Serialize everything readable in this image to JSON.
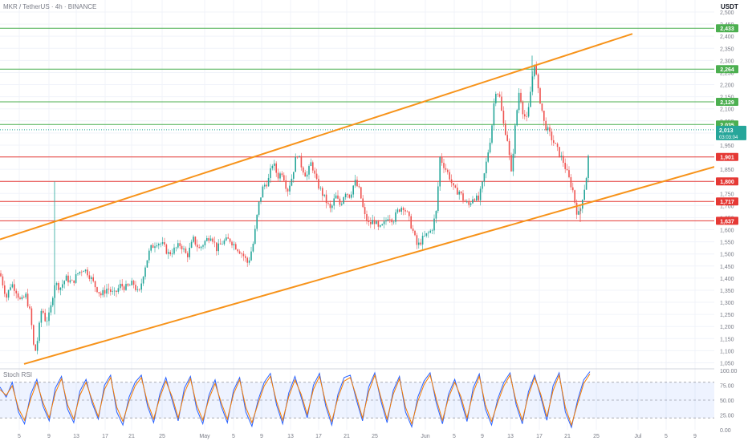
{
  "header": {
    "symbol_text": "MKR / TetherUS · 4h · BINANCE",
    "currency_label": "USDT"
  },
  "chart_data": [
    {
      "type": "candlestick",
      "title": "MKR / TetherUS · 4h · BINANCE",
      "y_unit": "USDT",
      "ylim": [
        1025,
        2510
      ],
      "y_ticks": [
        "1,050",
        "1,100",
        "1,150",
        "1,200",
        "1,250",
        "1,300",
        "1,350",
        "1,400",
        "1,450",
        "1,500",
        "1,550",
        "1,600",
        "1,650",
        "1,700",
        "1,750",
        "1,800",
        "1,850",
        "1,900",
        "1,950",
        "2,000",
        "2,050",
        "2,100",
        "2,150",
        "2,200",
        "2,250",
        "2,300",
        "2,350",
        "2,400",
        "2,450",
        "2,500"
      ],
      "x_tick_labels": [
        "5",
        "9",
        "13",
        "17",
        "21",
        "25",
        "May",
        "5",
        "9",
        "13",
        "17",
        "21",
        "25",
        "Jun",
        "5",
        "9",
        "13",
        "17",
        "21",
        "25",
        "Jul",
        "5",
        "9"
      ],
      "x_tick_positions": [
        24,
        61,
        95,
        131,
        164,
        202,
        255,
        291,
        326,
        362,
        397,
        432,
        467,
        530,
        566,
        601,
        636,
        672,
        707,
        743,
        795,
        830,
        866
      ],
      "price_path": [
        [
          0,
          1420
        ],
        [
          8,
          1320
        ],
        [
          14,
          1380
        ],
        [
          20,
          1350
        ],
        [
          26,
          1300
        ],
        [
          32,
          1330
        ],
        [
          38,
          1250
        ],
        [
          43,
          1080
        ],
        [
          47,
          1150
        ],
        [
          52,
          1280
        ],
        [
          57,
          1220
        ],
        [
          62,
          1250
        ],
        [
          68,
          1380
        ],
        [
          75,
          1360
        ],
        [
          82,
          1400
        ],
        [
          90,
          1380
        ],
        [
          97,
          1420
        ],
        [
          104,
          1440
        ],
        [
          110,
          1420
        ],
        [
          118,
          1370
        ],
        [
          126,
          1330
        ],
        [
          134,
          1360
        ],
        [
          142,
          1330
        ],
        [
          150,
          1370
        ],
        [
          158,
          1360
        ],
        [
          166,
          1380
        ],
        [
          173,
          1330
        ],
        [
          180,
          1440
        ],
        [
          187,
          1520
        ],
        [
          195,
          1550
        ],
        [
          202,
          1540
        ],
        [
          210,
          1500
        ],
        [
          218,
          1520
        ],
        [
          225,
          1540
        ],
        [
          233,
          1490
        ],
        [
          241,
          1560
        ],
        [
          248,
          1520
        ],
        [
          255,
          1550
        ],
        [
          263,
          1580
        ],
        [
          270,
          1520
        ],
        [
          278,
          1550
        ],
        [
          286,
          1560
        ],
        [
          294,
          1530
        ],
        [
          302,
          1500
        ],
        [
          309,
          1460
        ],
        [
          316,
          1550
        ],
        [
          322,
          1700
        ],
        [
          328,
          1780
        ],
        [
          334,
          1800
        ],
        [
          340,
          1880
        ],
        [
          346,
          1820
        ],
        [
          352,
          1840
        ],
        [
          358,
          1760
        ],
        [
          364,
          1820
        ],
        [
          370,
          1920
        ],
        [
          376,
          1860
        ],
        [
          382,
          1820
        ],
        [
          388,
          1880
        ],
        [
          394,
          1800
        ],
        [
          400,
          1760
        ],
        [
          406,
          1720
        ],
        [
          412,
          1680
        ],
        [
          418,
          1740
        ],
        [
          424,
          1700
        ],
        [
          430,
          1760
        ],
        [
          436,
          1740
        ],
        [
          442,
          1800
        ],
        [
          448,
          1760
        ],
        [
          454,
          1660
        ],
        [
          460,
          1620
        ],
        [
          466,
          1640
        ],
        [
          472,
          1600
        ],
        [
          478,
          1620
        ],
        [
          484,
          1660
        ],
        [
          490,
          1640
        ],
        [
          496,
          1680
        ],
        [
          502,
          1700
        ],
        [
          508,
          1660
        ],
        [
          514,
          1600
        ],
        [
          520,
          1530
        ],
        [
          526,
          1560
        ],
        [
          532,
          1580
        ],
        [
          538,
          1600
        ],
        [
          544,
          1680
        ],
        [
          548,
          1900
        ],
        [
          554,
          1860
        ],
        [
          560,
          1820
        ],
        [
          566,
          1760
        ],
        [
          572,
          1760
        ],
        [
          578,
          1720
        ],
        [
          584,
          1700
        ],
        [
          590,
          1740
        ],
        [
          596,
          1720
        ],
        [
          602,
          1800
        ],
        [
          607,
          1900
        ],
        [
          612,
          2000
        ],
        [
          617,
          2180
        ],
        [
          622,
          2160
        ],
        [
          627,
          2040
        ],
        [
          632,
          1980
        ],
        [
          637,
          1830
        ],
        [
          642,
          2030
        ],
        [
          647,
          2180
        ],
        [
          652,
          2080
        ],
        [
          657,
          2050
        ],
        [
          662,
          2200
        ],
        [
          666,
          2300
        ],
        [
          670,
          2180
        ],
        [
          674,
          2120
        ],
        [
          678,
          2040
        ],
        [
          684,
          2000
        ],
        [
          690,
          1960
        ],
        [
          696,
          1920
        ],
        [
          702,
          1880
        ],
        [
          708,
          1820
        ],
        [
          714,
          1760
        ],
        [
          718,
          1680
        ],
        [
          722,
          1660
        ],
        [
          726,
          1740
        ],
        [
          730,
          1800
        ],
        [
          733,
          1900
        ],
        [
          735,
          2013
        ]
      ],
      "horizontal_levels": [
        {
          "value": 2433,
          "label": "2,433",
          "color": "#4caf50"
        },
        {
          "value": 2264,
          "label": "2,264",
          "color": "#4caf50"
        },
        {
          "value": 2129,
          "label": "2,129",
          "color": "#4caf50"
        },
        {
          "value": 2035,
          "label": "2,035",
          "color": "#4caf50"
        },
        {
          "value": 1901,
          "label": "1,901",
          "color": "#e53935"
        },
        {
          "value": 1800,
          "label": "1,800",
          "color": "#e53935"
        },
        {
          "value": 1717,
          "label": "1,717",
          "color": "#e53935"
        },
        {
          "value": 1637,
          "label": "1,637",
          "color": "#e53935"
        }
      ],
      "trendlines": [
        {
          "from": [
            0,
            1560
          ],
          "to": [
            788,
            2410
          ],
          "color": "#f7931a"
        },
        {
          "from": [
            30,
            1045
          ],
          "to": [
            890,
            1860
          ],
          "color": "#f7931a"
        }
      ],
      "last_price": {
        "value": 2013,
        "label": "2,013",
        "countdown": "03:03:04",
        "color": "#26a69a"
      },
      "colors": {
        "up": "#26a69a",
        "down": "#ef5350",
        "trendline": "#f7931a",
        "support": "#e53935",
        "resistance": "#4caf50"
      }
    },
    {
      "type": "line",
      "title": "Stoch RSI",
      "ylim": [
        0,
        100
      ],
      "y_ticks": [
        "100.00",
        "75.00",
        "50.00",
        "25.00",
        "0.00"
      ],
      "band": [
        20,
        80
      ],
      "series": [
        {
          "color": "#2962ff",
          "values": [
            72,
            55,
            80,
            30,
            10,
            60,
            85,
            40,
            15,
            70,
            90,
            35,
            12,
            65,
            85,
            45,
            18,
            75,
            92,
            30,
            8,
            55,
            80,
            92,
            40,
            12,
            60,
            88,
            50,
            15,
            70,
            90,
            35,
            10,
            58,
            84,
            40,
            12,
            66,
            88,
            30,
            6,
            50,
            80,
            95,
            42,
            10,
            62,
            90,
            55,
            20,
            75,
            95,
            40,
            8,
            60,
            88,
            92,
            50,
            15,
            72,
            96,
            48,
            12,
            66,
            90,
            30,
            5,
            55,
            82,
            96,
            45,
            10,
            60,
            85,
            50,
            14,
            70,
            94,
            35,
            8,
            52,
            80,
            96,
            42,
            10,
            64,
            92,
            55,
            16,
            74,
            96,
            30,
            4,
            50,
            84,
            98
          ]
        },
        {
          "color": "#f57c00",
          "values": [
            68,
            58,
            74,
            36,
            16,
            52,
            80,
            46,
            20,
            62,
            86,
            42,
            18,
            58,
            80,
            50,
            22,
            68,
            88,
            38,
            14,
            48,
            74,
            88,
            46,
            18,
            54,
            82,
            56,
            20,
            62,
            86,
            42,
            16,
            52,
            78,
            46,
            18,
            60,
            84,
            38,
            12,
            44,
            74,
            90,
            48,
            16,
            56,
            84,
            60,
            26,
            68,
            90,
            46,
            14,
            54,
            82,
            88,
            56,
            20,
            64,
            92,
            54,
            18,
            60,
            86,
            38,
            10,
            48,
            76,
            92,
            52,
            16,
            54,
            80,
            56,
            20,
            62,
            90,
            42,
            14,
            46,
            74,
            92,
            48,
            16,
            58,
            88,
            60,
            22,
            66,
            92,
            38,
            8,
            44,
            78,
            94
          ]
        }
      ]
    }
  ]
}
